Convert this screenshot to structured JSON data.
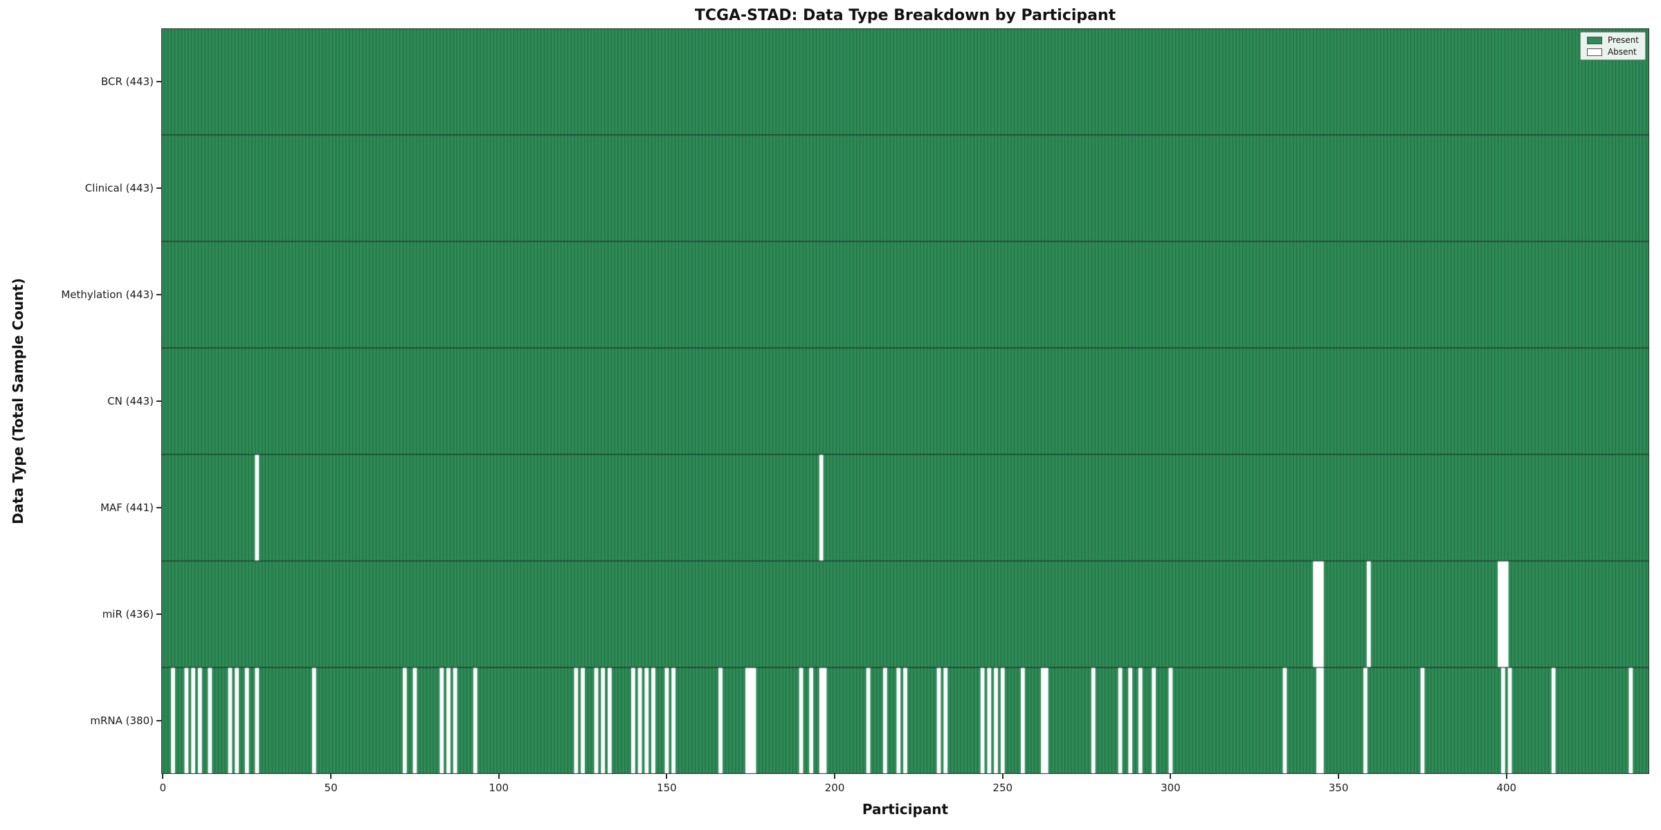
{
  "chart_data": {
    "type": "heatmap",
    "title": "TCGA-STAD: Data Type Breakdown by Participant",
    "xlabel": "Participant",
    "ylabel": "Data Type (Total Sample Count)",
    "n_participants": 443,
    "x_ticks": [
      0,
      50,
      100,
      150,
      200,
      250,
      300,
      350,
      400
    ],
    "legend": {
      "position": "upper right",
      "entries": [
        {
          "label": "Present",
          "color": "#2e8b57"
        },
        {
          "label": "Absent",
          "color": "#ffffff"
        }
      ]
    },
    "colors": {
      "present": "#2e8b57",
      "absent": "#ffffff",
      "cell_edge": "#17502f",
      "row_separator": "#1f1f1f",
      "plot_border": "#2b2b2b"
    },
    "rows": [
      {
        "label": "BCR (443)",
        "name": "BCR",
        "count": 443,
        "absent": []
      },
      {
        "label": "Clinical (443)",
        "name": "Clinical",
        "count": 443,
        "absent": []
      },
      {
        "label": "Methylation (443)",
        "name": "Methylation",
        "count": 443,
        "absent": []
      },
      {
        "label": "CN (443)",
        "name": "CN",
        "count": 443,
        "absent": []
      },
      {
        "label": "MAF (441)",
        "name": "MAF",
        "count": 441,
        "absent": [
          28,
          196
        ]
      },
      {
        "label": "miR (436)",
        "name": "miR",
        "count": 436,
        "absent": [
          343,
          344,
          345,
          359,
          398,
          399,
          400
        ]
      },
      {
        "label": "mRNA (380)",
        "name": "mRNA",
        "count": 380,
        "absent": [
          3,
          7,
          9,
          11,
          14,
          20,
          22,
          25,
          28,
          45,
          72,
          75,
          83,
          85,
          87,
          93,
          123,
          125,
          129,
          131,
          133,
          140,
          142,
          144,
          146,
          150,
          152,
          166,
          174,
          175,
          176,
          190,
          193,
          196,
          197,
          210,
          215,
          219,
          221,
          231,
          233,
          244,
          246,
          248,
          250,
          256,
          262,
          263,
          277,
          285,
          288,
          291,
          295,
          300,
          334,
          344,
          345,
          358,
          375,
          399,
          401,
          414,
          437
        ]
      }
    ]
  }
}
